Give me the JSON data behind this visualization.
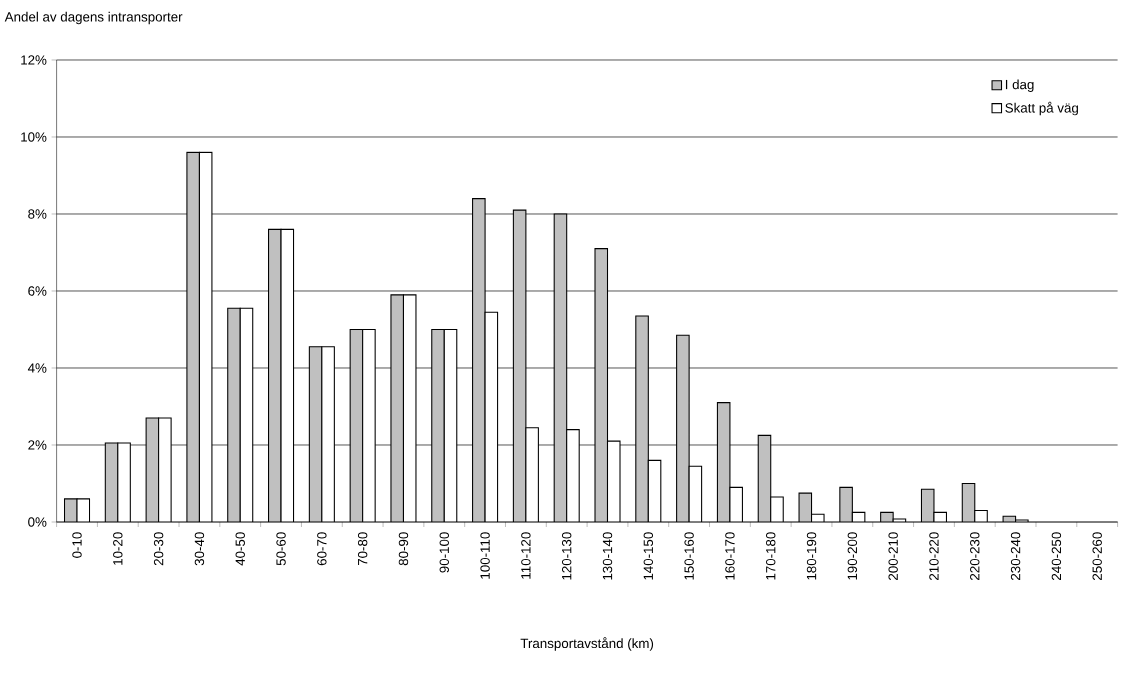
{
  "chart_data": {
    "type": "bar",
    "title": "Andel av dagens intransporter",
    "xlabel": "Transportavstånd (km)",
    "categories": [
      "0-10",
      "10-20",
      "20-30",
      "30-40",
      "40-50",
      "50-60",
      "60-70",
      "70-80",
      "80-90",
      "90-100",
      "100-110",
      "110-120",
      "120-130",
      "130-140",
      "140-150",
      "150-160",
      "160-170",
      "170-180",
      "180-190",
      "190-200",
      "200-210",
      "210-220",
      "220-230",
      "230-240",
      "240-250",
      "250-260"
    ],
    "series": [
      {
        "name": "I dag",
        "color": "#c0c0c0",
        "values": [
          0.6,
          2.05,
          2.7,
          9.6,
          5.55,
          7.6,
          4.55,
          5.0,
          5.9,
          5.0,
          8.4,
          8.1,
          8.0,
          7.1,
          5.35,
          4.85,
          3.1,
          2.25,
          0.75,
          0.9,
          0.25,
          0.85,
          1.0,
          0.15,
          null,
          null
        ]
      },
      {
        "name": "Skatt på väg",
        "color": "#ffffff",
        "values": [
          0.6,
          2.05,
          2.7,
          9.6,
          5.55,
          7.6,
          4.55,
          5.0,
          5.9,
          5.0,
          5.45,
          2.45,
          2.4,
          2.1,
          1.6,
          1.45,
          0.9,
          0.65,
          0.2,
          0.25,
          0.08,
          0.25,
          0.3,
          0.05,
          null,
          null
        ]
      }
    ],
    "ylim": [
      0,
      12
    ],
    "yticks": [
      {
        "value": 0,
        "label": "0%"
      },
      {
        "value": 2,
        "label": "2%"
      },
      {
        "value": 4,
        "label": "4%"
      },
      {
        "value": 6,
        "label": "6%"
      },
      {
        "value": 8,
        "label": "8%"
      },
      {
        "value": 10,
        "label": "10%"
      },
      {
        "value": 12,
        "label": "12%"
      }
    ],
    "grid": "y",
    "legend": "top right"
  }
}
